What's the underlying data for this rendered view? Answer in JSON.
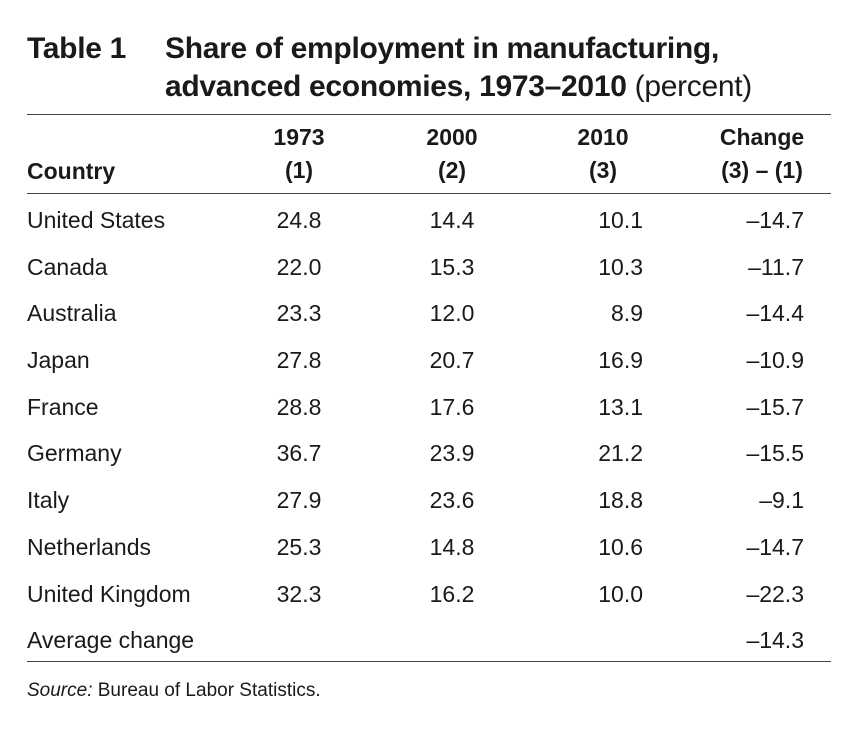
{
  "table": {
    "label": "Table 1",
    "title_line1": "Share of employment in manufacturing,",
    "title_line2": "advanced economies, 1973–2010",
    "unit": "(percent)",
    "headers": {
      "country": "Country",
      "col1_line1": "1973",
      "col1_line2": "(1)",
      "col2_line1": "2000",
      "col2_line2": "(2)",
      "col3_line1": "2010",
      "col3_line2": "(3)",
      "col4_line1": "Change",
      "col4_line2": "(3) – (1)"
    },
    "rows": [
      {
        "country": "United States",
        "y1973": "24.8",
        "y2000": "14.4",
        "y2010": "10.1",
        "change": "–14.7"
      },
      {
        "country": "Canada",
        "y1973": "22.0",
        "y2000": "15.3",
        "y2010": "10.3",
        "change": "–11.7"
      },
      {
        "country": "Australia",
        "y1973": "23.3",
        "y2000": "12.0",
        "y2010": "8.9",
        "change": "–14.4"
      },
      {
        "country": "Japan",
        "y1973": "27.8",
        "y2000": "20.7",
        "y2010": "16.9",
        "change": "–10.9"
      },
      {
        "country": "France",
        "y1973": "28.8",
        "y2000": "17.6",
        "y2010": "13.1",
        "change": "–15.7"
      },
      {
        "country": "Germany",
        "y1973": "36.7",
        "y2000": "23.9",
        "y2010": "21.2",
        "change": "–15.5"
      },
      {
        "country": "Italy",
        "y1973": "27.9",
        "y2000": "23.6",
        "y2010": "18.8",
        "change": "–9.1"
      },
      {
        "country": "Netherlands",
        "y1973": "25.3",
        "y2000": "14.8",
        "y2010": "10.6",
        "change": "–14.7"
      },
      {
        "country": "United Kingdom",
        "y1973": "32.3",
        "y2000": "16.2",
        "y2010": "10.0",
        "change": "–22.3"
      }
    ],
    "average": {
      "label": "Average change",
      "change": "–14.3"
    },
    "source_label": "Source:",
    "source_text": " Bureau of Labor Statistics."
  }
}
